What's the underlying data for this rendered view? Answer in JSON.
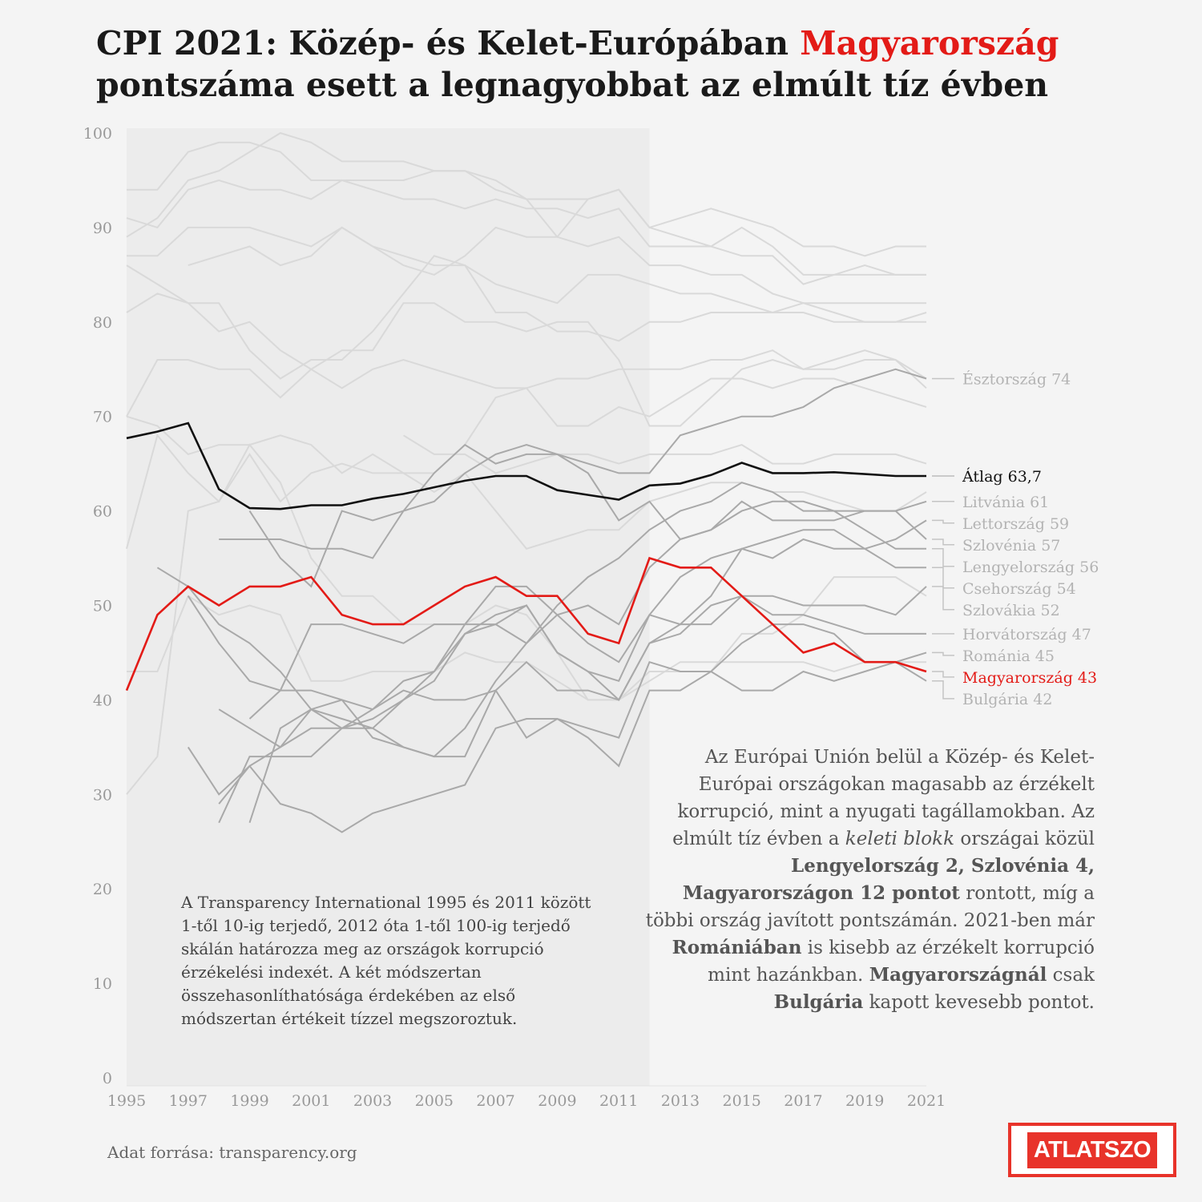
{
  "title": {
    "part1": "CPI 2021: Közép- és Kelet-Európában ",
    "highlight": "Magyarország",
    "part2": "pontszáma esett a legnagyobbat az elmúlt tíz évben"
  },
  "note_left": "A Transparency International 1995 és 2011 között 1-től 10-ig terjedő, 2012 óta 1-től 100-ig terjedő skálán határozza meg az országok korrupció érzékelési indexét. A két módszertan összehasonlíthatósága érdekében az első módszertan értékeit tízzel megszoroztuk.",
  "note_right": {
    "s1": "Az Európai Unión belül a Közép- és Kelet-Európai országokan magasabb az érzékelt korrupció, mint a nyugati tagállamokban. Az elmúlt tíz évben a ",
    "s1_italic": "keleti blokk",
    "s2": " országai közül ",
    "s2_bold": "Lengyelország 2, Szlovénia 4, Magyarországon 12 pontot",
    "s3": " rontott, míg a többi ország javított pontszámán. 2021-ben már ",
    "s3_bold": "Romániában",
    "s4": " is kisebb az érzékelt korrupció mint hazánkban. ",
    "s4_bold1": "Magyarországnál",
    "s5": " csak ",
    "s5_bold2": "Bulgária",
    "s6": " kapott kevesebb pontot."
  },
  "source": "Adat forrása: transparency.org",
  "logo": "ATLATSZO",
  "colors": {
    "hungary": "#e31b17",
    "average": "#111111",
    "cee": "#a9a9a9",
    "west": "#d9d9d9",
    "shade": "#ececec"
  },
  "chart_data": {
    "type": "line",
    "x": [
      1995,
      1996,
      1997,
      1998,
      1999,
      2000,
      2001,
      2002,
      2003,
      2004,
      2005,
      2006,
      2007,
      2008,
      2009,
      2010,
      2011,
      2012,
      2013,
      2014,
      2015,
      2016,
      2017,
      2018,
      2019,
      2020,
      2021
    ],
    "xticks": [
      "1995",
      "1997",
      "1999",
      "2001",
      "2003",
      "2005",
      "2007",
      "2009",
      "2011",
      "2013",
      "2015",
      "2017",
      "2019",
      "2021"
    ],
    "yticks": [
      "0",
      "10",
      "20",
      "30",
      "40",
      "50",
      "60",
      "70",
      "80",
      "90",
      "100"
    ],
    "ylim": [
      0,
      100
    ],
    "shaded_range": [
      1995,
      2012
    ],
    "highlighted": [
      {
        "name": "Átlag 63,7",
        "role": "average",
        "values": [
          67.7,
          68.4,
          69.3,
          62.3,
          60.3,
          60.2,
          60.6,
          60.6,
          61.3,
          61.8,
          62.5,
          63.2,
          63.7,
          63.7,
          62.2,
          61.7,
          61.2,
          62.7,
          62.9,
          63.8,
          65.1,
          64.0,
          64.0,
          64.1,
          63.9,
          63.7,
          63.7
        ]
      },
      {
        "name": "Magyarország 43",
        "role": "hungary",
        "values": [
          41,
          49,
          52,
          50,
          52,
          52,
          53,
          49,
          48,
          48,
          50,
          52,
          53,
          51,
          51,
          47,
          46,
          55,
          54,
          54,
          51,
          48,
          45,
          46,
          44,
          44,
          43
        ]
      }
    ],
    "series": [
      {
        "name": "Észtország 74",
        "values": [
          null,
          null,
          null,
          57,
          57,
          57,
          56,
          56,
          55,
          60,
          64,
          67,
          65,
          66,
          66,
          65,
          64,
          64,
          68,
          69,
          70,
          70,
          71,
          73,
          74,
          75,
          74
        ]
      },
      {
        "name": "Litvánia 61",
        "values": [
          null,
          null,
          null,
          null,
          38,
          41,
          48,
          48,
          47,
          46,
          48,
          48,
          48,
          46,
          49,
          50,
          48,
          54,
          57,
          58,
          61,
          59,
          59,
          59,
          60,
          60,
          61
        ]
      },
      {
        "name": "Lettország 59",
        "values": [
          null,
          null,
          null,
          27,
          34,
          34,
          34,
          37,
          38,
          40,
          42,
          47,
          48,
          50,
          45,
          43,
          42,
          49,
          53,
          55,
          56,
          57,
          58,
          58,
          56,
          57,
          59
        ]
      },
      {
        "name": "Szlovénia 57",
        "values": [
          null,
          null,
          null,
          null,
          60,
          55,
          52,
          60,
          59,
          60,
          61,
          64,
          66,
          67,
          66,
          64,
          59,
          61,
          57,
          58,
          60,
          61,
          61,
          60,
          60,
          60,
          57
        ]
      },
      {
        "name": "Lengyelország 56",
        "values": [
          56,
          null,
          51,
          46,
          42,
          41,
          41,
          40,
          36,
          35,
          34,
          37,
          42,
          46,
          50,
          53,
          55,
          58,
          60,
          61,
          63,
          62,
          60,
          60,
          58,
          56,
          56
        ]
      },
      {
        "name": "Csehország 54",
        "values": [
          null,
          54,
          52,
          48,
          46,
          43,
          39,
          37,
          39,
          42,
          43,
          48,
          52,
          52,
          49,
          46,
          44,
          49,
          48,
          51,
          56,
          55,
          57,
          56,
          56,
          54,
          54
        ]
      },
      {
        "name": "Szlovákia 52",
        "values": [
          null,
          null,
          null,
          39,
          37,
          35,
          37,
          37,
          37,
          40,
          43,
          47,
          49,
          50,
          45,
          43,
          40,
          46,
          47,
          50,
          51,
          51,
          50,
          50,
          50,
          49,
          52
        ]
      },
      {
        "name": "Horvátország 47",
        "values": [
          null,
          null,
          null,
          null,
          27,
          37,
          39,
          38,
          37,
          35,
          34,
          34,
          41,
          44,
          41,
          41,
          40,
          46,
          48,
          48,
          51,
          49,
          49,
          48,
          47,
          47,
          47
        ]
      },
      {
        "name": "Románia 45",
        "values": [
          null,
          null,
          35,
          30,
          33,
          29,
          28,
          26,
          28,
          29,
          30,
          31,
          37,
          38,
          38,
          37,
          36,
          44,
          43,
          43,
          46,
          48,
          48,
          47,
          44,
          44,
          45
        ]
      },
      {
        "name": "Bulgária 42",
        "values": [
          null,
          null,
          null,
          29,
          33,
          35,
          39,
          40,
          39,
          41,
          40,
          40,
          41,
          36,
          38,
          36,
          33,
          41,
          41,
          43,
          41,
          41,
          43,
          42,
          43,
          44,
          42
        ]
      },
      {
        "name": "",
        "values": [
          94,
          94,
          98,
          99,
          99,
          98,
          95,
          95,
          95,
          95,
          96,
          96,
          94,
          93,
          89,
          93,
          94,
          90,
          91,
          92,
          91,
          90,
          88,
          88,
          87,
          88,
          88
        ]
      },
      {
        "name": "",
        "values": [
          89,
          91,
          95,
          96,
          98,
          100,
          99,
          97,
          97,
          97,
          96,
          96,
          95,
          93,
          93,
          93,
          94,
          90,
          89,
          88,
          90,
          88,
          85,
          85,
          86,
          85,
          85
        ]
      },
      {
        "name": "",
        "values": [
          91,
          90,
          94,
          95,
          94,
          94,
          93,
          95,
          94,
          93,
          93,
          92,
          93,
          92,
          92,
          91,
          92,
          88,
          88,
          88,
          87,
          87,
          84,
          85,
          85,
          85,
          85
        ]
      },
      {
        "name": "",
        "values": [
          87,
          87,
          90,
          90,
          90,
          89,
          88,
          90,
          88,
          87,
          86,
          86,
          84,
          83,
          82,
          85,
          85,
          84,
          83,
          83,
          82,
          81,
          82,
          82,
          82,
          82,
          82
        ]
      },
      {
        "name": "",
        "values": [
          null,
          null,
          86,
          87,
          88,
          86,
          87,
          90,
          88,
          86,
          85,
          87,
          90,
          89,
          89,
          88,
          89,
          86,
          86,
          85,
          85,
          83,
          82,
          81,
          80,
          80,
          80
        ]
      },
      {
        "name": "",
        "values": [
          86,
          84,
          82,
          82,
          77,
          74,
          76,
          76,
          79,
          83,
          87,
          86,
          81,
          81,
          79,
          79,
          78,
          80,
          80,
          81,
          81,
          81,
          81,
          80,
          80,
          80,
          81
        ]
      },
      {
        "name": "",
        "values": [
          81,
          83,
          82,
          79,
          80,
          77,
          75,
          73,
          75,
          76,
          75,
          74,
          73,
          73,
          74,
          74,
          75,
          75,
          75,
          76,
          76,
          77,
          75,
          75,
          76,
          76,
          74
        ]
      },
      {
        "name": "",
        "values": [
          70,
          76,
          76,
          75,
          75,
          72,
          75,
          77,
          77,
          82,
          82,
          80,
          80,
          79,
          80,
          80,
          76,
          69,
          69,
          72,
          75,
          76,
          75,
          76,
          77,
          76,
          73
        ]
      },
      {
        "name": "",
        "values": [
          70,
          69,
          66,
          67,
          67,
          68,
          67,
          64,
          66,
          64,
          64,
          67,
          72,
          73,
          69,
          69,
          71,
          70,
          72,
          74,
          74,
          73,
          74,
          74,
          73,
          72,
          71
        ]
      },
      {
        "name": "",
        "values": [
          null,
          null,
          null,
          null,
          null,
          null,
          null,
          null,
          null,
          68,
          66,
          66,
          64,
          65,
          66,
          66,
          65,
          66,
          66,
          66,
          67,
          65,
          65,
          66,
          66,
          66,
          65
        ]
      },
      {
        "name": "",
        "values": [
          56,
          68,
          64,
          61,
          66,
          61,
          64,
          65,
          64,
          64,
          62,
          64,
          60,
          56,
          57,
          58,
          58,
          61,
          62,
          63,
          63,
          62,
          62,
          61,
          60,
          60,
          62
        ]
      },
      {
        "name": "",
        "values": [
          43,
          43,
          51,
          49,
          50,
          49,
          42,
          42,
          43,
          43,
          43,
          45,
          44,
          44,
          42,
          40,
          40,
          42,
          44,
          44,
          44,
          44,
          44,
          43,
          44,
          44,
          44
        ]
      },
      {
        "name": "",
        "values": [
          30,
          34,
          60,
          61,
          67,
          63,
          55,
          51,
          51,
          48,
          48,
          48,
          50,
          49,
          45,
          40,
          40,
          43,
          43,
          43,
          47,
          47,
          49,
          53,
          53,
          53,
          51
        ]
      }
    ]
  }
}
